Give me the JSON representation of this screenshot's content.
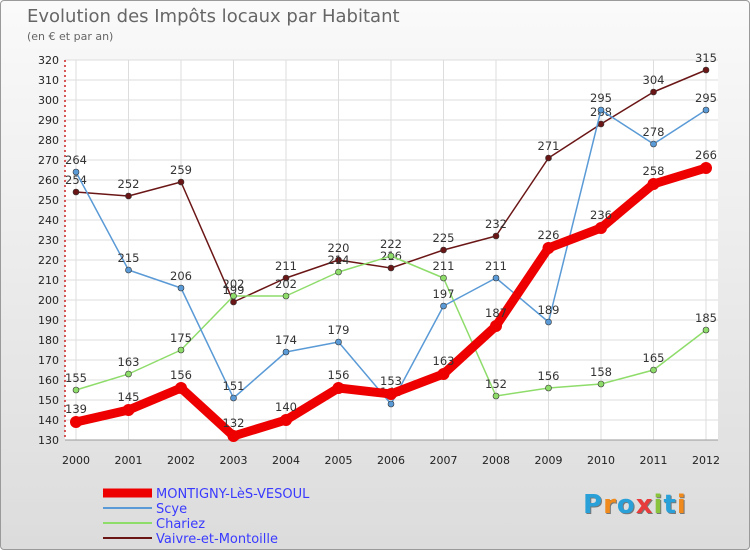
{
  "chart_data": {
    "type": "line",
    "title": "Evolution des Impôts locaux par Habitant",
    "subtitle": "(en € et par an)",
    "categories": [
      "2000",
      "2001",
      "2002",
      "2003",
      "2004",
      "2005",
      "2006",
      "2007",
      "2008",
      "2009",
      "2010",
      "2011",
      "2012"
    ],
    "ylim": [
      130,
      320
    ],
    "yticks": [
      130,
      140,
      150,
      160,
      170,
      180,
      190,
      200,
      210,
      220,
      230,
      240,
      250,
      260,
      270,
      280,
      290,
      300,
      310,
      320
    ],
    "series": [
      {
        "name": "Vaivre-et-Montoille",
        "color": "#6b1616",
        "values": [
          254,
          252,
          259,
          199,
          211,
          220,
          216,
          225,
          232,
          271,
          288,
          304,
          315
        ],
        "labels": [
          "254",
          "252",
          "259",
          "199",
          "211",
          "220",
          "216",
          "225",
          "232",
          "271",
          "288",
          "304",
          "315"
        ]
      },
      {
        "name": "Chariez",
        "color": "#8edc6a",
        "values": [
          155,
          163,
          175,
          202,
          202,
          214,
          222,
          211,
          152,
          156,
          158,
          165,
          185
        ],
        "labels": [
          "155",
          "163",
          "175",
          "202",
          "202",
          "214",
          "222",
          "211",
          "152",
          "156",
          "158",
          "165",
          "185"
        ]
      },
      {
        "name": "Scye",
        "color": "#5a9ad6",
        "values": [
          264,
          215,
          206,
          151,
          174,
          179,
          148,
          197,
          211,
          189,
          295,
          278,
          295
        ],
        "labels": [
          "264",
          "215",
          "206",
          "151",
          "174",
          "179",
          "148",
          "197",
          "211",
          "189",
          "295",
          "278",
          "295"
        ]
      },
      {
        "name": "MONTIGNY-LèS-VESOUL",
        "color": "#ee0000",
        "values": [
          139,
          145,
          156,
          132,
          140,
          156,
          153,
          163,
          187,
          226,
          236,
          258,
          266
        ],
        "labels": [
          "139",
          "145",
          "156",
          "132",
          "140",
          "156",
          "153",
          "163",
          "187",
          "226",
          "236",
          "258",
          "266"
        ]
      }
    ],
    "legend": [
      "MONTIGNY-LèS-VESOUL",
      "Scye",
      "Chariez",
      "Vaivre-et-Montoille"
    ],
    "legend_position": "bottom-left"
  },
  "logo": {
    "letters": [
      "P",
      "r",
      "o",
      "x",
      "i",
      "t",
      "i"
    ],
    "colors": [
      "#2aa0d8",
      "#f08a1c",
      "#2aa0d8",
      "#e83c3c",
      "#8ac43f",
      "#2aa0d8",
      "#f08a1c"
    ]
  }
}
